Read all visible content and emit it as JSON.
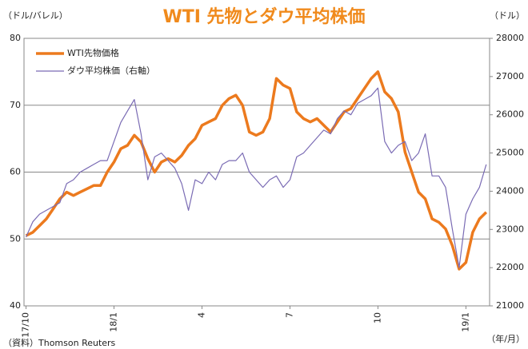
{
  "chart_data": {
    "type": "line",
    "title": "WTI 先物とダウ平均株価",
    "y_label": "（ドル/バレル）",
    "y2_label": "（ドル）",
    "x_label": "（年/月）",
    "source": "（資料）Thomson Reuters",
    "x": [
      0,
      1,
      2,
      3,
      4,
      5,
      6,
      7,
      8,
      9,
      10,
      11,
      12,
      13,
      14,
      15,
      16,
      17,
      18,
      19,
      20,
      21,
      22,
      23,
      24,
      25,
      26,
      27,
      28,
      29,
      30,
      31,
      32,
      33,
      34,
      35,
      36,
      37,
      38,
      39,
      40,
      41,
      42,
      43,
      44,
      45,
      46,
      47,
      48,
      49,
      50,
      51,
      52,
      53,
      54,
      55,
      56,
      57,
      58,
      59,
      60,
      61,
      62,
      63,
      64,
      65,
      66,
      67,
      68
    ],
    "xlim": [
      -0.3,
      68.5
    ],
    "xticks": [
      {
        "value": 0,
        "label": "17/10"
      },
      {
        "value": 13,
        "label": "18/1"
      },
      {
        "value": 26,
        "label": "4"
      },
      {
        "value": 39,
        "label": "7"
      },
      {
        "value": 52,
        "label": "10"
      },
      {
        "value": 65,
        "label": "19/1"
      }
    ],
    "ylim": [
      40,
      80
    ],
    "yticks": [
      40,
      50,
      60,
      70,
      80
    ],
    "y2lim": [
      21000,
      28000
    ],
    "y2ticks": [
      21000,
      22000,
      23000,
      24000,
      25000,
      26000,
      27000,
      28000
    ],
    "grid": true,
    "legend": "upper left",
    "series": [
      {
        "name": "WTI先物価格",
        "color": "#ec7a1e",
        "values": [
          50.5,
          51,
          52,
          53,
          54.5,
          56,
          57,
          56.5,
          57,
          57.5,
          58,
          58,
          60,
          61.5,
          63.5,
          64,
          65.5,
          64.5,
          62,
          60,
          61.5,
          62,
          61.5,
          62.5,
          64,
          65,
          67,
          67.5,
          68,
          70,
          71,
          71.5,
          70,
          66,
          65.5,
          66,
          68,
          74,
          73,
          72.5,
          69,
          68,
          67.5,
          68,
          67,
          66,
          67.5,
          69,
          69.5,
          71,
          72.5,
          74,
          75,
          72,
          71,
          69,
          63,
          60,
          57,
          56,
          53,
          52.5,
          51.5,
          49,
          45.5,
          46.5,
          51,
          53,
          54
        ]
      },
      {
        "name": "ダウ平均株価（右軸）",
        "color": "#7a6bb4",
        "axis": "y2",
        "values": [
          22800,
          23200,
          23400,
          23500,
          23600,
          23700,
          24200,
          24300,
          24500,
          24600,
          24700,
          24800,
          24800,
          25300,
          25800,
          26100,
          26400,
          25500,
          24300,
          24900,
          25000,
          24800,
          24600,
          24200,
          23500,
          24300,
          24200,
          24500,
          24300,
          24700,
          24800,
          24800,
          25000,
          24500,
          24300,
          24100,
          24300,
          24400,
          24100,
          24300,
          24900,
          25000,
          25200,
          25400,
          25600,
          25500,
          25900,
          26100,
          26000,
          26300,
          26400,
          26500,
          26700,
          25300,
          25000,
          25200,
          25300,
          24800,
          25000,
          25500,
          24400,
          24400,
          24100,
          23000,
          22000,
          23400,
          23800,
          24100,
          24700
        ]
      }
    ]
  }
}
